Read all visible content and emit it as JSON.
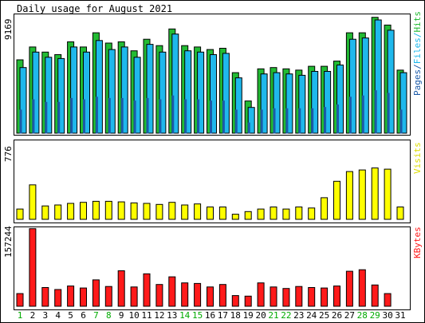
{
  "window": {
    "title": "Daily usage for August 2021"
  },
  "panels": {
    "hits_pages_files": {
      "max_label": "9169",
      "legend": {
        "pages": "Pages",
        "files": "Files",
        "hits": "Hits",
        "sep": "/"
      },
      "colors": {
        "hits": "#22bb33",
        "files": "#1fb8ec",
        "pages": "#1b5aa8"
      }
    },
    "visits": {
      "max_label": "776",
      "legend": "Visits",
      "color": "#ffff00"
    },
    "kbytes": {
      "max_label": "157244",
      "legend": "KBytes",
      "color": "#ff1a1a"
    }
  },
  "x_axis": {
    "days": [
      "1",
      "2",
      "3",
      "4",
      "5",
      "6",
      "7",
      "8",
      "9",
      "10",
      "11",
      "12",
      "13",
      "14",
      "15",
      "16",
      "17",
      "18",
      "19",
      "20",
      "21",
      "22",
      "23",
      "24",
      "25",
      "26",
      "27",
      "28",
      "29",
      "30",
      "31"
    ],
    "weekend_days": [
      "1",
      "7",
      "8",
      "14",
      "15",
      "21",
      "22",
      "28",
      "29"
    ],
    "weekend_color": "#00aa00",
    "weekday_color": "#000000"
  },
  "chart_data": [
    {
      "type": "bar",
      "title": "Daily usage for August 2021",
      "categories": [
        "1",
        "2",
        "3",
        "4",
        "5",
        "6",
        "7",
        "8",
        "9",
        "10",
        "11",
        "12",
        "13",
        "14",
        "15",
        "16",
        "17",
        "18",
        "19",
        "20",
        "21",
        "22",
        "23",
        "24",
        "25",
        "26",
        "27",
        "28",
        "29",
        "30",
        "31"
      ],
      "ylim": [
        0,
        9169
      ],
      "series": [
        {
          "name": "Hits",
          "values": [
            5700,
            6700,
            6300,
            6100,
            7100,
            6700,
            7800,
            7000,
            7100,
            6400,
            7300,
            6800,
            8100,
            6800,
            6700,
            6500,
            6600,
            4700,
            2500,
            5000,
            5100,
            5000,
            4900,
            5200,
            5200,
            5600,
            7800,
            7800,
            9000,
            8400,
            4900
          ]
        },
        {
          "name": "Files",
          "values": [
            5100,
            6300,
            5900,
            5800,
            6700,
            6300,
            7200,
            6500,
            6700,
            5900,
            6900,
            6300,
            7700,
            6400,
            6300,
            6100,
            6200,
            4300,
            2000,
            4600,
            4700,
            4600,
            4500,
            4800,
            4800,
            5300,
            7300,
            7400,
            8800,
            8000,
            4700
          ]
        },
        {
          "name": "Pages",
          "values": [
            1800,
            2600,
            2400,
            2400,
            2700,
            2600,
            2800,
            2700,
            2700,
            2500,
            2700,
            2600,
            2900,
            2600,
            2600,
            2500,
            2500,
            1800,
            800,
            1800,
            1900,
            1900,
            1900,
            1900,
            2000,
            2200,
            2800,
            2900,
            3300,
            3100,
            1800
          ]
        }
      ]
    },
    {
      "type": "bar",
      "categories": [
        "1",
        "2",
        "3",
        "4",
        "5",
        "6",
        "7",
        "8",
        "9",
        "10",
        "11",
        "12",
        "13",
        "14",
        "15",
        "16",
        "17",
        "18",
        "19",
        "20",
        "21",
        "22",
        "23",
        "24",
        "25",
        "26",
        "27",
        "28",
        "29",
        "30",
        "31"
      ],
      "ylim": [
        0,
        776
      ],
      "series": [
        {
          "name": "Visits",
          "values": [
            100,
            335,
            130,
            140,
            155,
            165,
            175,
            175,
            170,
            160,
            155,
            145,
            165,
            140,
            150,
            120,
            120,
            50,
            75,
            100,
            120,
            100,
            120,
            110,
            210,
            370,
            465,
            480,
            500,
            488,
            120
          ]
        }
      ]
    },
    {
      "type": "bar",
      "categories": [
        "1",
        "2",
        "3",
        "4",
        "5",
        "6",
        "7",
        "8",
        "9",
        "10",
        "11",
        "12",
        "13",
        "14",
        "15",
        "16",
        "17",
        "18",
        "19",
        "20",
        "21",
        "22",
        "23",
        "24",
        "25",
        "26",
        "27",
        "28",
        "29",
        "30",
        "31"
      ],
      "ylim": [
        0,
        157244
      ],
      "series": [
        {
          "name": "KBytes",
          "values": [
            25000,
            153000,
            37000,
            33000,
            40000,
            36000,
            52000,
            39000,
            70000,
            38000,
            64000,
            43000,
            58000,
            46000,
            45000,
            38000,
            43000,
            21000,
            20000,
            46000,
            38000,
            35000,
            39000,
            37000,
            36000,
            40000,
            69000,
            72000,
            42000,
            25000,
            0
          ]
        }
      ]
    }
  ]
}
